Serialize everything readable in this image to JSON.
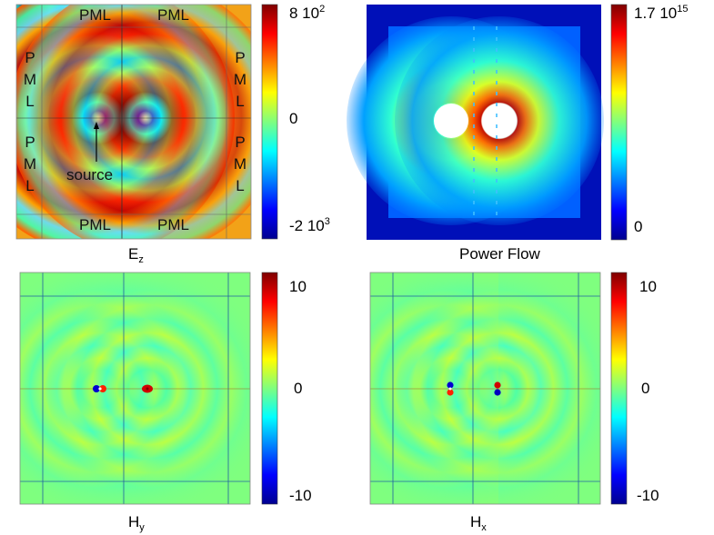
{
  "panels": {
    "ez": {
      "title": "E",
      "title_sub": "z",
      "pml": [
        "PML",
        "PML",
        "PML",
        "PML"
      ],
      "pml_side": [
        "P",
        "M",
        "L"
      ],
      "annotation": "source",
      "colorbar": {
        "top_base": "8 10",
        "top_exp": "2",
        "mid": "0",
        "bottom_base": "-2 10",
        "bottom_exp": "3"
      }
    },
    "power": {
      "title": "Power Flow",
      "colorbar": {
        "top_base": "1.7 10",
        "top_exp": "15",
        "bottom": "0"
      }
    },
    "hy": {
      "title": "H",
      "title_sub": "y",
      "colorbar": {
        "top": "10",
        "mid": "0",
        "bottom": "-10"
      }
    },
    "hx": {
      "title": "H",
      "title_sub": "x",
      "colorbar": {
        "top": "10",
        "mid": "0",
        "bottom": "-10"
      }
    }
  },
  "colors": {
    "jet_low": "#00008f",
    "jet_mid": "#7fff7f",
    "jet_high": "#7f0000",
    "pml_orange": "#f2a218"
  }
}
